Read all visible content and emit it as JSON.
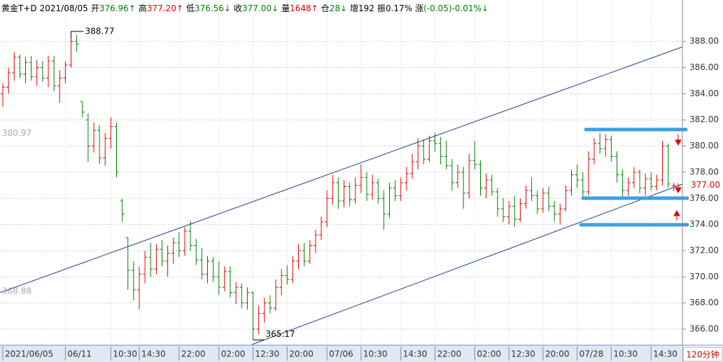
{
  "header": {
    "symbol": "黄金T+D",
    "date": "2021/08/05",
    "fields": [
      {
        "label": "开",
        "value": "376.96↑",
        "color": "#008000"
      },
      {
        "label": "高",
        "value": "377.20↑",
        "color": "#e00000"
      },
      {
        "label": "低",
        "value": "376.56↓",
        "color": "#008000"
      },
      {
        "label": "收",
        "value": "377.00↓",
        "color": "#008000"
      },
      {
        "label": "量",
        "value": "1648↑",
        "color": "#e00000"
      },
      {
        "label": "仓",
        "value": "28↓",
        "color": "#008000"
      },
      {
        "label": "增",
        "value": "192",
        "color": "#000000"
      },
      {
        "label": "振",
        "value": "0.17%",
        "color": "#000000"
      },
      {
        "label": "涨",
        "value": "(-0.05)-0.01%↓",
        "color": "#008000"
      }
    ]
  },
  "chart_data": {
    "type": "ohlc",
    "period": "120分钟",
    "up_color": "#e00000",
    "down_color": "#008000",
    "ylim": [
      364.77,
      391.17
    ],
    "yticks": [
      {
        "value": 366,
        "label": "366.00"
      },
      {
        "value": 368,
        "label": "368.00"
      },
      {
        "value": 370,
        "label": "370.00"
      },
      {
        "value": 372,
        "label": "372.00"
      },
      {
        "value": 374,
        "label": "374.00"
      },
      {
        "value": 376,
        "label": "376.00"
      },
      {
        "value": 378,
        "label": "378.00"
      },
      {
        "value": 380,
        "label": "380.00"
      },
      {
        "value": 382,
        "label": "382.00"
      },
      {
        "value": 384,
        "label": "384.00"
      },
      {
        "value": 386,
        "label": "386.00"
      },
      {
        "value": 388,
        "label": "388.00"
      }
    ],
    "grid": true,
    "last_price": {
      "value": 377,
      "label": "377.00"
    },
    "high_label": 388.77,
    "low_label": 365.17,
    "range_labels": [
      380.97,
      368.88
    ],
    "categories": [
      "2021/06/05",
      null,
      null,
      null,
      null,
      null,
      null,
      null,
      null,
      null,
      null,
      "06/11",
      null,
      null,
      null,
      null,
      null,
      null,
      null,
      "10:30",
      null,
      null,
      null,
      null,
      "14:30",
      null,
      null,
      null,
      null,
      null,
      null,
      "22:00",
      null,
      null,
      null,
      null,
      null,
      null,
      "02:00",
      null,
      null,
      null,
      null,
      null,
      "12:30",
      null,
      null,
      null,
      null,
      null,
      "20:00",
      null,
      null,
      null,
      null,
      null,
      null,
      "07/06",
      null,
      null,
      null,
      null,
      null,
      "10:30",
      null,
      null,
      null,
      null,
      null,
      null,
      "14:30",
      null,
      null,
      null,
      null,
      null,
      "22:00",
      null,
      null,
      null,
      null,
      null,
      null,
      "02:00",
      null,
      null,
      null,
      null,
      null,
      "12:30",
      null,
      null,
      null,
      null,
      null,
      "20:00",
      null,
      null,
      null,
      null,
      null,
      "07/28",
      null,
      null,
      null,
      null,
      null,
      "10:30",
      null,
      null,
      null,
      null,
      null,
      null,
      "14:30",
      null,
      null,
      null,
      null
    ],
    "bars": [
      [
        384.0,
        384.8,
        383.0,
        384.5
      ],
      [
        384.5,
        386.0,
        384.0,
        385.6
      ],
      [
        385.6,
        387.2,
        385.0,
        386.8
      ],
      [
        386.8,
        387.0,
        385.2,
        385.5
      ],
      [
        385.5,
        386.8,
        384.8,
        386.4
      ],
      [
        386.4,
        386.9,
        385.0,
        385.3
      ],
      [
        385.3,
        386.6,
        384.6,
        386.0
      ],
      [
        386.0,
        386.5,
        384.9,
        385.2
      ],
      [
        385.2,
        386.9,
        384.5,
        386.5
      ],
      [
        386.5,
        386.9,
        384.2,
        384.6
      ],
      [
        384.6,
        385.8,
        383.3,
        385.2
      ],
      [
        385.2,
        386.5,
        384.8,
        386.2
      ],
      [
        386.2,
        388.77,
        386.0,
        388.0
      ],
      [
        388.0,
        388.5,
        387.2,
        387.8
      ],
      [
        383.4,
        383.4,
        382.2,
        382.6
      ],
      [
        382.0,
        382.5,
        378.8,
        380.0
      ],
      [
        380.0,
        381.8,
        379.5,
        381.2
      ],
      [
        381.2,
        381.6,
        378.6,
        379.1
      ],
      [
        379.1,
        381.0,
        378.5,
        380.6
      ],
      [
        380.6,
        382.2,
        379.8,
        381.5
      ],
      [
        381.5,
        381.8,
        377.6,
        378.0
      ],
      [
        375.8,
        376.0,
        374.2,
        374.8
      ],
      [
        373.0,
        373.0,
        369.0,
        370.5
      ],
      [
        370.5,
        371.2,
        368.2,
        369.0
      ],
      [
        369.0,
        370.8,
        367.5,
        370.2
      ],
      [
        370.2,
        372.0,
        369.5,
        371.5
      ],
      [
        371.5,
        372.6,
        370.0,
        370.6
      ],
      [
        370.6,
        372.5,
        370.2,
        372.1
      ],
      [
        372.1,
        372.8,
        370.8,
        371.2
      ],
      [
        371.2,
        372.4,
        370.0,
        371.8
      ],
      [
        371.8,
        373.0,
        371.0,
        372.6
      ],
      [
        372.6,
        373.4,
        371.5,
        372.0
      ],
      [
        372.0,
        373.8,
        371.6,
        373.5
      ],
      [
        373.5,
        374.3,
        372.0,
        372.4
      ],
      [
        372.4,
        372.9,
        370.9,
        371.3
      ],
      [
        371.3,
        372.2,
        369.8,
        370.2
      ],
      [
        370.2,
        371.6,
        369.5,
        371.2
      ],
      [
        371.2,
        371.5,
        369.6,
        370.0
      ],
      [
        370.0,
        371.2,
        368.6,
        369.2
      ],
      [
        369.2,
        370.8,
        368.9,
        370.4
      ],
      [
        370.4,
        370.8,
        368.4,
        368.8
      ],
      [
        368.8,
        369.6,
        367.9,
        369.2
      ],
      [
        369.2,
        369.5,
        367.6,
        368.0
      ],
      [
        368.0,
        369.2,
        367.5,
        368.8
      ],
      [
        368.8,
        368.9,
        365.17,
        366.0
      ],
      [
        366.0,
        367.8,
        365.6,
        367.2
      ],
      [
        367.2,
        368.4,
        366.5,
        368.0
      ],
      [
        368.0,
        368.6,
        367.2,
        367.6
      ],
      [
        367.6,
        369.8,
        367.4,
        369.2
      ],
      [
        369.2,
        370.6,
        368.6,
        370.1
      ],
      [
        370.1,
        370.9,
        369.4,
        369.8
      ],
      [
        369.8,
        371.6,
        369.5,
        371.2
      ],
      [
        371.2,
        372.5,
        370.6,
        372.0
      ],
      [
        372.0,
        372.6,
        370.8,
        371.2
      ],
      [
        371.2,
        372.8,
        371.0,
        372.4
      ],
      [
        372.4,
        373.6,
        371.8,
        373.2
      ],
      [
        373.2,
        374.6,
        372.8,
        374.2
      ],
      [
        374.2,
        376.6,
        373.8,
        376.0
      ],
      [
        376.0,
        377.8,
        375.5,
        377.2
      ],
      [
        377.2,
        377.6,
        375.2,
        375.8
      ],
      [
        375.8,
        377.4,
        375.3,
        376.9
      ],
      [
        376.9,
        377.2,
        375.4,
        375.9
      ],
      [
        375.9,
        377.6,
        375.6,
        377.0
      ],
      [
        377.0,
        378.6,
        376.4,
        377.6
      ],
      [
        377.6,
        378.0,
        375.8,
        376.3
      ],
      [
        376.3,
        377.8,
        375.9,
        377.2
      ],
      [
        377.2,
        377.5,
        375.6,
        376.0
      ],
      [
        376.0,
        376.6,
        373.6,
        374.8
      ],
      [
        374.8,
        377.2,
        374.5,
        376.8
      ],
      [
        376.8,
        377.4,
        375.8,
        376.2
      ],
      [
        376.2,
        377.6,
        375.8,
        377.2
      ],
      [
        377.2,
        378.4,
        376.6,
        377.9
      ],
      [
        377.9,
        379.4,
        377.5,
        378.8
      ],
      [
        378.8,
        380.6,
        378.2,
        380.0
      ],
      [
        380.0,
        380.5,
        378.6,
        379.0
      ],
      [
        379.0,
        380.8,
        378.8,
        380.4
      ],
      [
        380.4,
        381.0,
        379.6,
        380.2
      ],
      [
        380.2,
        380.7,
        378.6,
        379.2
      ],
      [
        379.2,
        380.4,
        378.2,
        378.5
      ],
      [
        378.5,
        379.0,
        376.6,
        377.2
      ],
      [
        377.2,
        378.6,
        376.8,
        378.0
      ],
      [
        378.0,
        378.4,
        375.2,
        376.4
      ],
      [
        376.4,
        379.4,
        376.0,
        378.9
      ],
      [
        378.9,
        380.4,
        378.2,
        378.6
      ],
      [
        378.6,
        378.9,
        376.2,
        376.8
      ],
      [
        376.8,
        377.9,
        376.0,
        377.4
      ],
      [
        377.4,
        377.8,
        376.2,
        376.5
      ],
      [
        376.5,
        376.8,
        374.6,
        375.2
      ],
      [
        375.2,
        376.0,
        374.2,
        374.6
      ],
      [
        374.6,
        375.8,
        374.0,
        375.4
      ],
      [
        375.4,
        376.2,
        373.8,
        374.4
      ],
      [
        374.4,
        376.0,
        374.2,
        375.6
      ],
      [
        375.6,
        377.0,
        375.2,
        376.6
      ],
      [
        376.6,
        377.6,
        375.8,
        376.2
      ],
      [
        376.2,
        376.6,
        374.8,
        375.2
      ],
      [
        375.2,
        376.8,
        374.9,
        376.4
      ],
      [
        376.4,
        376.9,
        375.0,
        375.4
      ],
      [
        375.4,
        375.8,
        374.2,
        374.8
      ],
      [
        374.8,
        375.6,
        374.0,
        375.2
      ],
      [
        375.2,
        377.0,
        375.0,
        376.6
      ],
      [
        376.6,
        378.2,
        376.2,
        377.8
      ],
      [
        377.8,
        378.6,
        376.8,
        377.4
      ],
      [
        377.4,
        378.0,
        376.0,
        376.5
      ],
      [
        376.5,
        379.6,
        376.2,
        379.0
      ],
      [
        379.0,
        380.6,
        378.6,
        380.2
      ],
      [
        380.2,
        381.0,
        379.4,
        379.8
      ],
      [
        379.8,
        380.9,
        379.2,
        380.5
      ],
      [
        380.5,
        380.8,
        378.8,
        379.2
      ],
      [
        379.2,
        379.6,
        377.2,
        377.8
      ],
      [
        377.8,
        378.2,
        376.0,
        376.6
      ],
      [
        376.6,
        377.6,
        376.2,
        377.2
      ],
      [
        377.2,
        378.4,
        376.8,
        378.0
      ],
      [
        378.0,
        378.2,
        376.4,
        376.8
      ],
      [
        376.8,
        377.9,
        376.2,
        377.5
      ],
      [
        377.5,
        378.0,
        376.6,
        376.9
      ],
      [
        376.9,
        377.8,
        376.6,
        377.4
      ],
      [
        377.4,
        380.4,
        377.0,
        380.0
      ],
      [
        380.0,
        380.2,
        376.8,
        377.1
      ],
      [
        376.96,
        377.2,
        376.56,
        377.0
      ]
    ]
  }
}
